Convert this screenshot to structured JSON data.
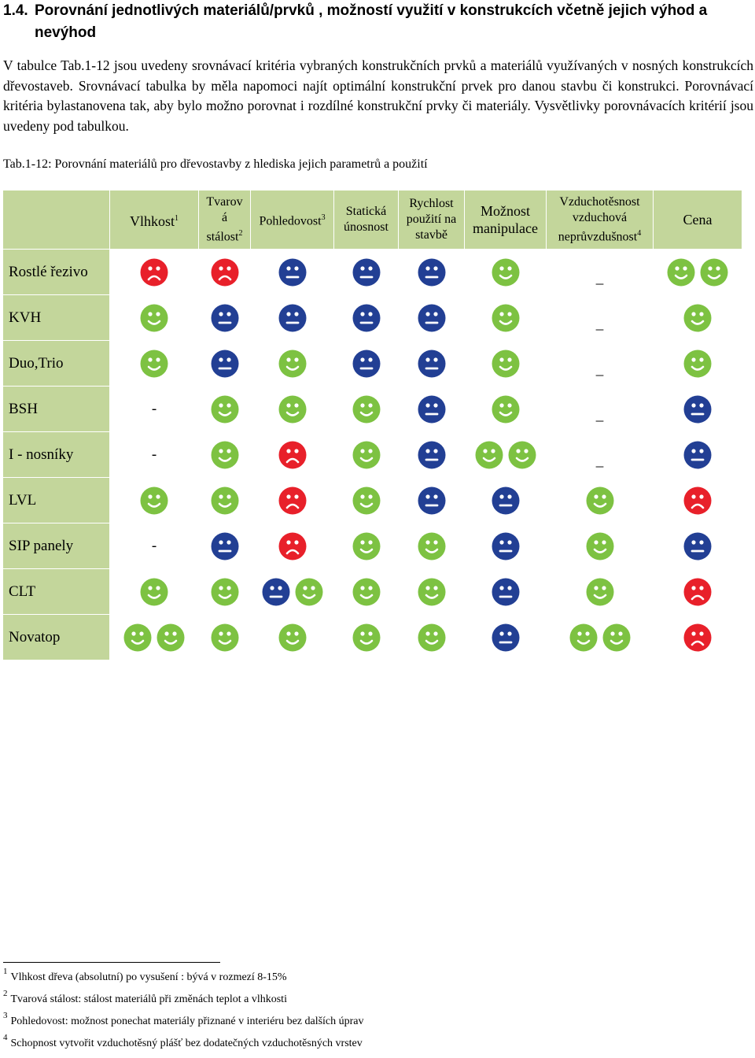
{
  "heading": {
    "number": "1.4.",
    "line1": "Porovnání jednotlivých materiálů/prvků , možností využití v konstrukcích včetně jejich výhod a",
    "line2": "nevýhod"
  },
  "intro": "V tabulce Tab.1-12 jsou uvedeny srovnávací kritéria vybraných konstrukčních prvků a materiálů využívaných v nosných konstrukcích dřevostaveb. Srovnávací tabulka by měla napomoci najít optimální konstrukční prvek pro danou stavbu či konstrukci. Porovnávací kritéria bylastanovena tak, aby bylo možno porovnat i rozdílné konstrukční prvky či materiály. Vysvětlivky porovnávacích kritérií jsou uvedeny pod tabulkou.",
  "caption": "Tab.1-12: Porovnání materiálů pro dřevostavby z hlediska jejich parametrů a použití",
  "table": {
    "headers": [
      {
        "text": "Vlhkost",
        "sup": "1"
      },
      {
        "text": "Tvarová stálost",
        "sup": "2"
      },
      {
        "text": "Pohledovost",
        "sup": "3"
      },
      {
        "text": "Statická únosnost",
        "sup": ""
      },
      {
        "text": "Rychlost použití na stavbě",
        "sup": ""
      },
      {
        "text": "Možnost manipulace",
        "sup": ""
      },
      {
        "text": "Vzduchotěsnost vzduchová neprůvzdušnost",
        "sup": "4"
      },
      {
        "text": "Cena",
        "sup": ""
      }
    ],
    "header_parts": {
      "tvar_1": "Tvarov",
      "tvar_2": "á",
      "tvar_3": "stálost",
      "static_1": "Statická",
      "static_2": "únosnost",
      "rych_1": "Rychlost",
      "rych_2": "použití na",
      "rych_3": "stavbě",
      "mozn_1": "Možnost",
      "mozn_2": "manipulace",
      "vzd_1": "Vzduchotěsnost",
      "vzd_2": "vzduchová",
      "vzd_3": "neprůvzdušnost"
    },
    "legend_colors": {
      "good": "#7dc242",
      "neutral": "#223f94",
      "bad": "#e8202a",
      "header_bg": "#c3d69b"
    },
    "rows": [
      {
        "label": "Rostlé řezivo",
        "cells": [
          [
            "bad"
          ],
          [
            "bad"
          ],
          [
            "neutral"
          ],
          [
            "neutral"
          ],
          [
            "neutral"
          ],
          [
            "good"
          ],
          [
            "udash:_"
          ],
          [
            "good",
            "good"
          ]
        ]
      },
      {
        "label": "KVH",
        "cells": [
          [
            "good"
          ],
          [
            "neutral"
          ],
          [
            "neutral"
          ],
          [
            "neutral"
          ],
          [
            "neutral"
          ],
          [
            "good"
          ],
          [
            "udash:_"
          ],
          [
            "good"
          ]
        ]
      },
      {
        "label": "Duo,Trio",
        "cells": [
          [
            "good"
          ],
          [
            "neutral"
          ],
          [
            "good"
          ],
          [
            "neutral"
          ],
          [
            "neutral"
          ],
          [
            "good"
          ],
          [
            "udash:_"
          ],
          [
            "good"
          ]
        ]
      },
      {
        "label": "BSH",
        "cells": [
          [
            "dash:-"
          ],
          [
            "good"
          ],
          [
            "good"
          ],
          [
            "good"
          ],
          [
            "neutral"
          ],
          [
            "good"
          ],
          [
            "udash:_"
          ],
          [
            "neutral"
          ]
        ]
      },
      {
        "label": "I - nosníky",
        "cells": [
          [
            "dash:-"
          ],
          [
            "good"
          ],
          [
            "bad"
          ],
          [
            "good"
          ],
          [
            "neutral"
          ],
          [
            "good",
            "good"
          ],
          [
            "udash:_"
          ],
          [
            "neutral"
          ]
        ]
      },
      {
        "label": "LVL",
        "cells": [
          [
            "good"
          ],
          [
            "good"
          ],
          [
            "bad"
          ],
          [
            "good"
          ],
          [
            "neutral"
          ],
          [
            "neutral"
          ],
          [
            "good"
          ],
          [
            "bad"
          ]
        ]
      },
      {
        "label": "SIP panely",
        "cells": [
          [
            "dash:-"
          ],
          [
            "neutral"
          ],
          [
            "bad"
          ],
          [
            "good"
          ],
          [
            "good"
          ],
          [
            "neutral"
          ],
          [
            "good"
          ],
          [
            "neutral"
          ]
        ]
      },
      {
        "label": "CLT",
        "cells": [
          [
            "good"
          ],
          [
            "good"
          ],
          [
            "neutral",
            "good"
          ],
          [
            "good"
          ],
          [
            "good"
          ],
          [
            "neutral"
          ],
          [
            "good"
          ],
          [
            "bad"
          ]
        ]
      },
      {
        "label": "Novatop",
        "cells": [
          [
            "good",
            "good"
          ],
          [
            "good"
          ],
          [
            "good"
          ],
          [
            "good"
          ],
          [
            "good"
          ],
          [
            "neutral"
          ],
          [
            "good",
            "good"
          ],
          [
            "bad"
          ]
        ]
      }
    ]
  },
  "footnotes": [
    {
      "n": "1",
      "text": "Vlhkost dřeva  (absolutní) po vysušení : bývá v rozmezí 8-15%"
    },
    {
      "n": "2",
      "text": "Tvarová stálost: stálost materiálů při změnách teplot a vlhkosti"
    },
    {
      "n": "3",
      "text": "Pohledovost: možnost ponechat materiály přiznané v interiéru bez dalších úprav"
    },
    {
      "n": "4",
      "text": "Schopnost vytvořit vzduchotěsný plášť bez dodatečných vzduchotěsných vrstev"
    }
  ]
}
